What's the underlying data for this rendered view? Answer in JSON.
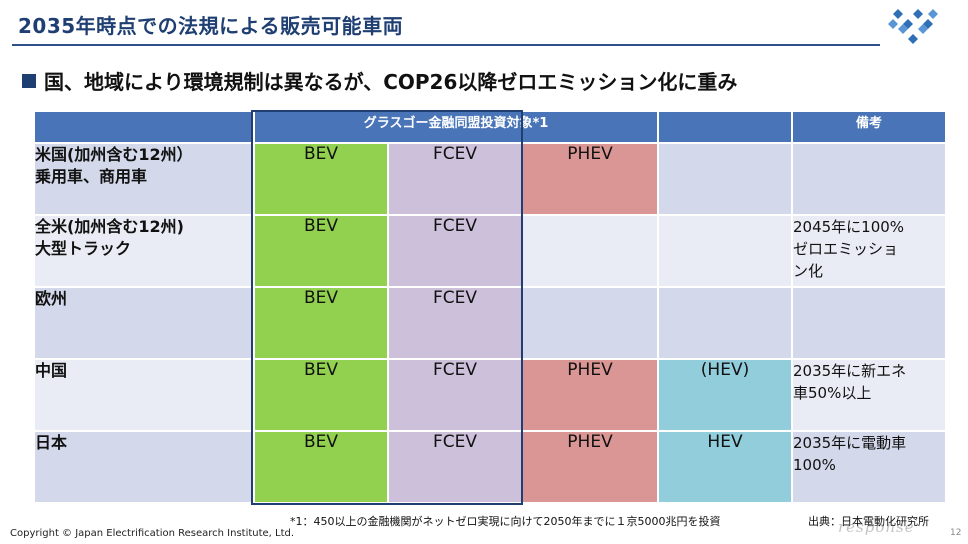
{
  "title": "2035年時点での法規による販売可能車両",
  "subtitle": "国、地域により環境規制は異なるが、COP26以降ゼロエミッション化に重み",
  "table": {
    "header": {
      "alliance": "グラスゴー金融同盟投資対象*1",
      "remarks": "備考"
    },
    "rows": [
      {
        "region": "米国(加州含む12州）\n乗用車、商用車",
        "bev": "BEV",
        "fcev": "FCEV",
        "phev": "PHEV",
        "hev": "",
        "note": ""
      },
      {
        "region": "全米(加州含む12州)\n大型トラック",
        "bev": "BEV",
        "fcev": "FCEV",
        "phev": "",
        "hev": "",
        "note": "2045年に100%\nゼロエミッショ\nン化"
      },
      {
        "region": "欧州",
        "bev": "BEV",
        "fcev": "FCEV",
        "phev": "",
        "hev": "",
        "note": ""
      },
      {
        "region": "中国",
        "bev": "BEV",
        "fcev": "FCEV",
        "phev": "PHEV",
        "hev": "(HEV)",
        "note": "2035年に新エネ\n車50%以上"
      },
      {
        "region": "日本",
        "bev": "BEV",
        "fcev": "FCEV",
        "phev": "PHEV",
        "hev": "HEV",
        "note": "2035年に電動車\n100%"
      }
    ]
  },
  "footnote": "*1：450以上の金融機関がネットゼロ実現に向けて2050年までに１京5000兆円を投資",
  "source": "出典：日本電動化研究所",
  "copyright": "Copyright © Japan Electrification Research Institute, Ltd.",
  "page_number": "12",
  "watermark": "response",
  "colors": {
    "header": "#4a74b8",
    "bev": "#92d050",
    "fcev": "#ccc0da",
    "phev": "#da9694",
    "hev": "#92cddc",
    "accent": "#1f3f73"
  }
}
